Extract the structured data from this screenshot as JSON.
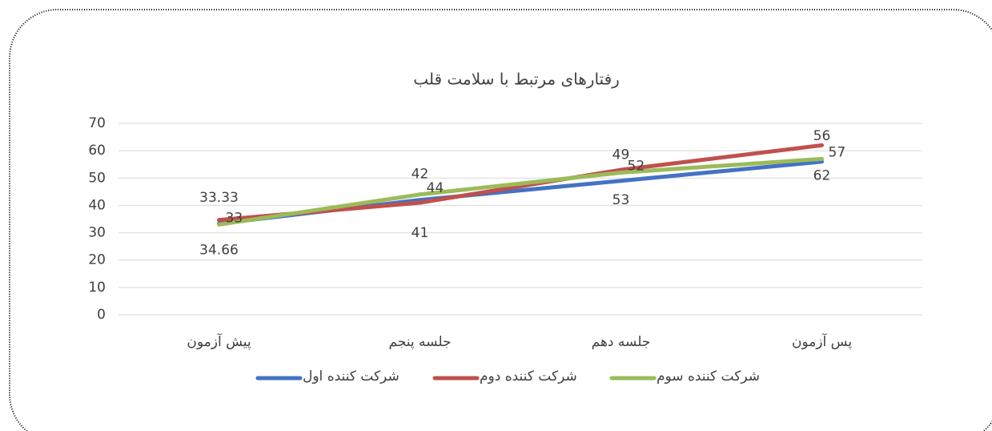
{
  "chart_data": {
    "type": "line",
    "title": "رفتارهای مرتبط با سلامت قلب",
    "categories": [
      "پیش آزمون",
      "جلسه پنجم",
      "جلسه دهم",
      "پس آزمون"
    ],
    "series": [
      {
        "name": "شرکت کننده اول",
        "color": "#4472c4",
        "values": [
          33.33,
          42,
          49,
          56
        ]
      },
      {
        "name": "شرکت کننده دوم",
        "color": "#c0504d",
        "values": [
          34.66,
          41,
          53,
          62
        ]
      },
      {
        "name": "شرکت کننده سوم",
        "color": "#9bbb59",
        "values": [
          33,
          44,
          52,
          57
        ]
      }
    ],
    "ylim": [
      0,
      70
    ],
    "yticks": [
      0,
      10,
      20,
      30,
      40,
      50,
      60,
      70
    ],
    "grid": true,
    "legend": "bottom"
  }
}
